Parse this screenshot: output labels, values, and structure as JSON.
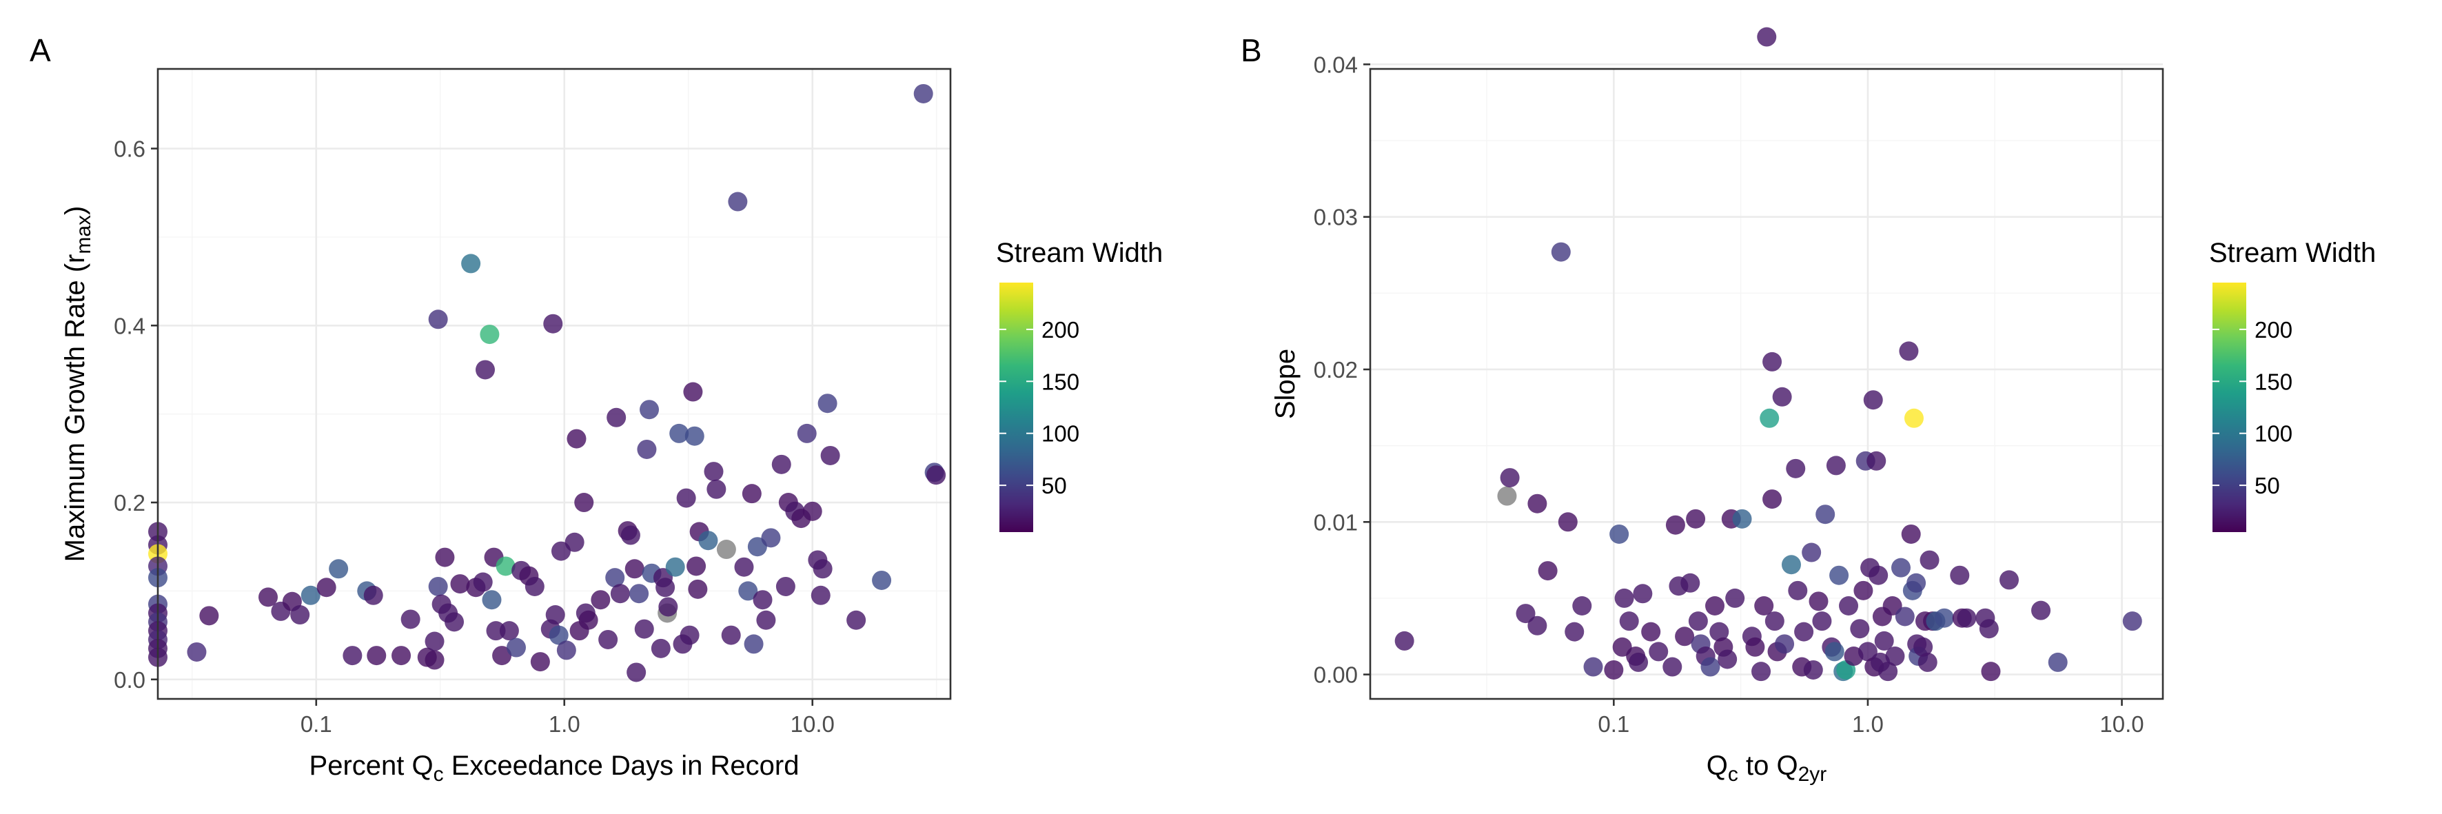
{
  "chart_data": [
    {
      "type": "scatter",
      "panel_label": "A",
      "xlabel_parts": [
        "Percent Q",
        "c",
        " Exceedance Days in Record"
      ],
      "ylabel_parts": [
        "Maximum Growth Rate (r",
        "max",
        ")"
      ],
      "x_scale": "log10",
      "xlim": [
        0.023,
        36
      ],
      "ylim": [
        -0.022,
        0.69
      ],
      "x_ticks": [
        0.1,
        1.0,
        10.0
      ],
      "x_tick_labels": [
        "0.1",
        "1.0",
        "10.0"
      ],
      "y_ticks": [
        0.0,
        0.2,
        0.4,
        0.6
      ],
      "y_tick_labels": [
        "0.0",
        "0.2",
        "0.4",
        "0.6"
      ],
      "grid": true,
      "legend": {
        "title": "Stream Width",
        "placement": "right",
        "type": "colorbar",
        "range": [
          5,
          245
        ],
        "tick_values": [
          50,
          100,
          150,
          200
        ],
        "tick_labels": [
          "50",
          "100",
          "150",
          "200"
        ],
        "colormap": [
          "#440154",
          "#482878",
          "#3e4989",
          "#31688e",
          "#26828e",
          "#1f9e89",
          "#35b779",
          "#6ece58",
          "#b5de2b",
          "#fde725"
        ],
        "na_color": "#808080"
      },
      "points": [
        [
          0.023,
          0.167,
          20
        ],
        [
          0.023,
          0.152,
          20
        ],
        [
          0.023,
          0.142,
          245
        ],
        [
          0.023,
          0.128,
          30
        ],
        [
          0.023,
          0.115,
          60
        ],
        [
          0.023,
          0.085,
          50
        ],
        [
          0.023,
          0.075,
          20
        ],
        [
          0.023,
          0.065,
          40
        ],
        [
          0.023,
          0.055,
          20
        ],
        [
          0.023,
          0.045,
          30
        ],
        [
          0.023,
          0.035,
          20
        ],
        [
          0.023,
          0.025,
          20
        ],
        [
          0.033,
          0.031,
          35
        ],
        [
          0.037,
          0.072,
          15
        ],
        [
          0.064,
          0.093,
          15
        ],
        [
          0.072,
          0.077,
          20
        ],
        [
          0.08,
          0.088,
          15
        ],
        [
          0.086,
          0.073,
          20
        ],
        [
          0.095,
          0.095,
          80
        ],
        [
          0.11,
          0.104,
          15
        ],
        [
          0.123,
          0.125,
          70
        ],
        [
          0.14,
          0.027,
          20
        ],
        [
          0.16,
          0.1,
          70
        ],
        [
          0.17,
          0.095,
          20
        ],
        [
          0.175,
          0.027,
          15
        ],
        [
          0.22,
          0.027,
          15
        ],
        [
          0.24,
          0.068,
          20
        ],
        [
          0.28,
          0.025,
          15
        ],
        [
          0.3,
          0.043,
          20
        ],
        [
          0.3,
          0.022,
          15
        ],
        [
          0.31,
          0.105,
          50
        ],
        [
          0.31,
          0.407,
          40
        ],
        [
          0.32,
          0.085,
          20
        ],
        [
          0.33,
          0.138,
          15
        ],
        [
          0.34,
          0.075,
          20
        ],
        [
          0.36,
          0.065,
          20
        ],
        [
          0.38,
          0.108,
          15
        ],
        [
          0.42,
          0.47,
          95
        ],
        [
          0.44,
          0.104,
          15
        ],
        [
          0.47,
          0.11,
          20
        ],
        [
          0.48,
          0.35,
          20
        ],
        [
          0.5,
          0.39,
          165
        ],
        [
          0.51,
          0.09,
          70
        ],
        [
          0.52,
          0.138,
          15
        ],
        [
          0.53,
          0.055,
          20
        ],
        [
          0.56,
          0.027,
          15
        ],
        [
          0.58,
          0.128,
          165
        ],
        [
          0.6,
          0.055,
          20
        ],
        [
          0.64,
          0.036,
          50
        ],
        [
          0.67,
          0.123,
          20
        ],
        [
          0.72,
          0.117,
          15
        ],
        [
          0.76,
          0.105,
          20
        ],
        [
          0.8,
          0.02,
          15
        ],
        [
          0.88,
          0.057,
          20
        ],
        [
          0.9,
          0.402,
          20
        ],
        [
          0.92,
          0.073,
          20
        ],
        [
          0.95,
          0.05,
          60
        ],
        [
          0.97,
          0.145,
          20
        ],
        [
          1.02,
          0.033,
          40
        ],
        [
          1.1,
          0.155,
          20
        ],
        [
          1.12,
          0.272,
          15
        ],
        [
          1.15,
          0.055,
          15
        ],
        [
          1.2,
          0.2,
          15
        ],
        [
          1.22,
          0.075,
          20
        ],
        [
          1.25,
          0.067,
          15
        ],
        [
          1.4,
          0.09,
          15
        ],
        [
          1.5,
          0.045,
          20
        ],
        [
          1.6,
          0.115,
          50
        ],
        [
          1.62,
          0.296,
          20
        ],
        [
          1.68,
          0.097,
          20
        ],
        [
          1.8,
          0.168,
          15
        ],
        [
          1.85,
          0.163,
          20
        ],
        [
          1.92,
          0.125,
          15
        ],
        [
          1.95,
          0.008,
          20
        ],
        [
          2.0,
          0.097,
          50
        ],
        [
          2.1,
          0.057,
          20
        ],
        [
          2.15,
          0.26,
          40
        ],
        [
          2.2,
          0.305,
          50
        ],
        [
          2.25,
          0.12,
          60
        ],
        [
          2.45,
          0.035,
          20
        ],
        [
          2.5,
          0.115,
          20
        ],
        [
          2.55,
          0.104,
          20
        ],
        [
          2.6,
          0.075,
          null
        ],
        [
          2.62,
          0.082,
          20
        ],
        [
          2.8,
          0.127,
          90
        ],
        [
          2.9,
          0.278,
          60
        ],
        [
          3.0,
          0.04,
          20
        ],
        [
          3.1,
          0.205,
          20
        ],
        [
          3.2,
          0.05,
          20
        ],
        [
          3.3,
          0.325,
          15
        ],
        [
          3.35,
          0.275,
          60
        ],
        [
          3.4,
          0.128,
          15
        ],
        [
          3.45,
          0.102,
          15
        ],
        [
          3.5,
          0.167,
          15
        ],
        [
          3.8,
          0.157,
          80
        ],
        [
          4.0,
          0.235,
          20
        ],
        [
          4.1,
          0.215,
          20
        ],
        [
          4.5,
          0.147,
          null
        ],
        [
          4.7,
          0.05,
          20
        ],
        [
          5.0,
          0.54,
          45
        ],
        [
          5.3,
          0.127,
          20
        ],
        [
          5.5,
          0.1,
          60
        ],
        [
          5.7,
          0.21,
          15
        ],
        [
          5.8,
          0.04,
          50
        ],
        [
          6.0,
          0.15,
          60
        ],
        [
          6.3,
          0.09,
          20
        ],
        [
          6.5,
          0.067,
          20
        ],
        [
          6.8,
          0.16,
          50
        ],
        [
          7.5,
          0.243,
          20
        ],
        [
          7.8,
          0.105,
          20
        ],
        [
          8.0,
          0.2,
          15
        ],
        [
          8.5,
          0.19,
          20
        ],
        [
          9.0,
          0.182,
          15
        ],
        [
          9.5,
          0.278,
          40
        ],
        [
          10.0,
          0.19,
          15
        ],
        [
          10.5,
          0.135,
          20
        ],
        [
          10.8,
          0.095,
          20
        ],
        [
          11.0,
          0.125,
          20
        ],
        [
          11.5,
          0.312,
          50
        ],
        [
          11.8,
          0.253,
          20
        ],
        [
          15.0,
          0.067,
          20
        ],
        [
          19.0,
          0.112,
          60
        ],
        [
          28.0,
          0.662,
          45
        ],
        [
          31.0,
          0.234,
          50
        ],
        [
          31.5,
          0.231,
          20
        ]
      ]
    },
    {
      "type": "scatter",
      "panel_label": "B",
      "xlabel_parts": [
        "Q",
        "c",
        " to Q",
        "2yr"
      ],
      "ylabel_parts": [
        "Slope"
      ],
      "x_scale": "log10",
      "xlim": [
        0.011,
        14.5
      ],
      "ylim": [
        -0.0016,
        0.0397
      ],
      "x_ticks": [
        0.1,
        1.0,
        10.0
      ],
      "x_tick_labels": [
        "0.1",
        "1.0",
        "10.0"
      ],
      "y_ticks": [
        0.0,
        0.01,
        0.02,
        0.03,
        0.04
      ],
      "y_tick_labels": [
        "0.00",
        "0.01",
        "0.02",
        "0.03",
        "0.04"
      ],
      "grid": true,
      "legend": {
        "title": "Stream Width",
        "placement": "right",
        "type": "colorbar",
        "range": [
          5,
          245
        ],
        "tick_values": [
          50,
          100,
          150,
          200
        ],
        "tick_labels": [
          "50",
          "100",
          "150",
          "200"
        ],
        "colormap": [
          "#440154",
          "#482878",
          "#3e4989",
          "#31688e",
          "#26828e",
          "#1f9e89",
          "#35b779",
          "#6ece58",
          "#b5de2b",
          "#fde725"
        ],
        "na_color": "#808080"
      },
      "points": [
        [
          0.015,
          0.0022,
          20
        ],
        [
          0.038,
          0.0117,
          null
        ],
        [
          0.039,
          0.0129,
          20
        ],
        [
          0.045,
          0.004,
          20
        ],
        [
          0.05,
          0.0112,
          15
        ],
        [
          0.05,
          0.0032,
          20
        ],
        [
          0.055,
          0.0068,
          15
        ],
        [
          0.062,
          0.0277,
          45
        ],
        [
          0.066,
          0.01,
          15
        ],
        [
          0.07,
          0.0028,
          20
        ],
        [
          0.075,
          0.0045,
          20
        ],
        [
          0.083,
          0.0005,
          40
        ],
        [
          0.1,
          0.0003,
          15
        ],
        [
          0.105,
          0.0092,
          60
        ],
        [
          0.108,
          0.0018,
          15
        ],
        [
          0.11,
          0.005,
          20
        ],
        [
          0.115,
          0.0035,
          20
        ],
        [
          0.122,
          0.0012,
          15
        ],
        [
          0.125,
          0.0008,
          20
        ],
        [
          0.13,
          0.0053,
          20
        ],
        [
          0.14,
          0.0028,
          15
        ],
        [
          0.15,
          0.0015,
          20
        ],
        [
          0.17,
          0.0005,
          20
        ],
        [
          0.175,
          0.0098,
          15
        ],
        [
          0.18,
          0.0058,
          20
        ],
        [
          0.19,
          0.0025,
          15
        ],
        [
          0.2,
          0.006,
          20
        ],
        [
          0.21,
          0.0102,
          15
        ],
        [
          0.215,
          0.0035,
          20
        ],
        [
          0.22,
          0.002,
          40
        ],
        [
          0.23,
          0.0012,
          20
        ],
        [
          0.24,
          0.0005,
          50
        ],
        [
          0.25,
          0.0045,
          15
        ],
        [
          0.26,
          0.0028,
          20
        ],
        [
          0.27,
          0.0018,
          15
        ],
        [
          0.28,
          0.001,
          20
        ],
        [
          0.29,
          0.0102,
          15
        ],
        [
          0.3,
          0.005,
          20
        ],
        [
          0.32,
          0.0102,
          80
        ],
        [
          0.35,
          0.0025,
          20
        ],
        [
          0.36,
          0.0018,
          15
        ],
        [
          0.38,
          0.0002,
          20
        ],
        [
          0.39,
          0.0045,
          15
        ],
        [
          0.4,
          0.0418,
          20
        ],
        [
          0.41,
          0.0168,
          140
        ],
        [
          0.42,
          0.0115,
          15
        ],
        [
          0.42,
          0.0205,
          20
        ],
        [
          0.43,
          0.0035,
          20
        ],
        [
          0.44,
          0.0015,
          15
        ],
        [
          0.46,
          0.0182,
          20
        ],
        [
          0.47,
          0.002,
          40
        ],
        [
          0.5,
          0.0072,
          90
        ],
        [
          0.52,
          0.0135,
          20
        ],
        [
          0.53,
          0.0055,
          20
        ],
        [
          0.55,
          0.0005,
          15
        ],
        [
          0.56,
          0.0028,
          20
        ],
        [
          0.6,
          0.008,
          40
        ],
        [
          0.61,
          0.0003,
          20
        ],
        [
          0.64,
          0.0048,
          15
        ],
        [
          0.66,
          0.0035,
          20
        ],
        [
          0.68,
          0.0105,
          50
        ],
        [
          0.72,
          0.0018,
          20
        ],
        [
          0.74,
          0.0015,
          70
        ],
        [
          0.75,
          0.0137,
          20
        ],
        [
          0.77,
          0.0065,
          60
        ],
        [
          0.8,
          0.0002,
          90
        ],
        [
          0.82,
          0.0003,
          140
        ],
        [
          0.84,
          0.0045,
          20
        ],
        [
          0.88,
          0.0012,
          15
        ],
        [
          0.93,
          0.003,
          20
        ],
        [
          0.96,
          0.0055,
          15
        ],
        [
          0.98,
          0.014,
          40
        ],
        [
          1.0,
          0.0015,
          20
        ],
        [
          1.02,
          0.007,
          20
        ],
        [
          1.05,
          0.018,
          20
        ],
        [
          1.06,
          0.0005,
          15
        ],
        [
          1.08,
          0.014,
          20
        ],
        [
          1.1,
          0.0065,
          20
        ],
        [
          1.12,
          0.0008,
          20
        ],
        [
          1.14,
          0.0038,
          15
        ],
        [
          1.16,
          0.0022,
          20
        ],
        [
          1.2,
          0.0002,
          20
        ],
        [
          1.25,
          0.0045,
          15
        ],
        [
          1.28,
          0.0012,
          20
        ],
        [
          1.35,
          0.007,
          50
        ],
        [
          1.4,
          0.0038,
          40
        ],
        [
          1.45,
          0.0212,
          20
        ],
        [
          1.48,
          0.0092,
          15
        ],
        [
          1.5,
          0.0055,
          60
        ],
        [
          1.52,
          0.0168,
          245
        ],
        [
          1.55,
          0.006,
          50
        ],
        [
          1.56,
          0.002,
          20
        ],
        [
          1.58,
          0.0012,
          50
        ],
        [
          1.65,
          0.0018,
          20
        ],
        [
          1.68,
          0.0035,
          15
        ],
        [
          1.72,
          0.0008,
          20
        ],
        [
          1.75,
          0.0075,
          20
        ],
        [
          1.8,
          0.0035,
          15
        ],
        [
          1.85,
          0.0035,
          70
        ],
        [
          2.0,
          0.0037,
          60
        ],
        [
          2.3,
          0.0065,
          20
        ],
        [
          2.35,
          0.0037,
          15
        ],
        [
          2.45,
          0.0037,
          20
        ],
        [
          2.9,
          0.0037,
          20
        ],
        [
          3.0,
          0.003,
          20
        ],
        [
          3.05,
          0.0002,
          15
        ],
        [
          3.6,
          0.0062,
          20
        ],
        [
          4.8,
          0.0042,
          20
        ],
        [
          5.6,
          0.0008,
          50
        ],
        [
          11.0,
          0.0035,
          40
        ]
      ]
    }
  ]
}
